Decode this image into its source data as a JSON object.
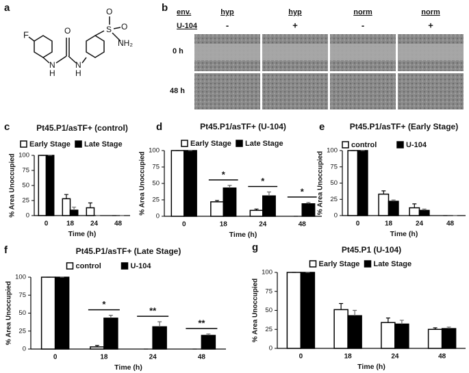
{
  "panel_labels": [
    "a",
    "b",
    "c",
    "d",
    "e",
    "f",
    "g"
  ],
  "structure": {
    "atoms": [
      "F",
      "N",
      "H",
      "O",
      "N",
      "H",
      "S",
      "O",
      "O",
      "NH₂"
    ]
  },
  "migration": {
    "env_label": "env.",
    "env": [
      "hyp",
      "hyp",
      "norm",
      "norm"
    ],
    "drug_label": "U-104",
    "drug": [
      "-",
      "+",
      "-",
      "+"
    ],
    "times": [
      "0 h",
      "48 h"
    ]
  },
  "chart_data": [
    {
      "type": "bar",
      "title": "Pt45.P1/asTF+ (control)",
      "xlabel": "Time (h)",
      "ylabel": "% Area Unoccupied",
      "categories": [
        "0",
        "18",
        "24",
        "48"
      ],
      "ylim": [
        0,
        100
      ],
      "yticks": [
        0,
        25,
        50,
        75,
        100
      ],
      "series": [
        {
          "name": "Early Stage",
          "color": "#ffffff",
          "values": [
            100,
            28,
            13,
            0
          ],
          "errors": [
            0,
            7,
            8,
            0
          ]
        },
        {
          "name": "Late Stage",
          "color": "#000000",
          "values": [
            100,
            9,
            0,
            0
          ],
          "errors": [
            0,
            5,
            0,
            0
          ]
        }
      ]
    },
    {
      "type": "bar",
      "title": "Pt45.P1/asTF+ (U-104)",
      "xlabel": "Time (h)",
      "ylabel": "% Area Unoccupied",
      "categories": [
        "0",
        "18",
        "24",
        "48"
      ],
      "ylim": [
        0,
        100
      ],
      "yticks": [
        0,
        25,
        50,
        75,
        100
      ],
      "series": [
        {
          "name": "Early Stage",
          "color": "#ffffff",
          "values": [
            100,
            22,
            9,
            0
          ],
          "errors": [
            0,
            2,
            2,
            0
          ]
        },
        {
          "name": "Late Stage",
          "color": "#000000",
          "values": [
            100,
            43,
            31,
            19
          ],
          "errors": [
            0,
            4,
            6,
            2
          ]
        }
      ],
      "annotations": [
        {
          "text": "*",
          "x": "18"
        },
        {
          "text": "*",
          "x": "24"
        },
        {
          "text": "*",
          "x": "48"
        }
      ]
    },
    {
      "type": "bar",
      "title": "Pt45.P1/asTF+ (Early Stage)",
      "xlabel": "Time (h)",
      "ylabel": "% Area Unoccupied",
      "categories": [
        "0",
        "18",
        "24",
        "48"
      ],
      "ylim": [
        0,
        100
      ],
      "yticks": [
        0,
        25,
        50,
        75,
        100
      ],
      "series": [
        {
          "name": "control",
          "color": "#ffffff",
          "values": [
            100,
            33,
            12,
            0
          ],
          "errors": [
            0,
            5,
            6,
            0
          ]
        },
        {
          "name": "U-104",
          "color": "#000000",
          "values": [
            100,
            22,
            8,
            0
          ],
          "errors": [
            0,
            2,
            2,
            0
          ]
        }
      ]
    },
    {
      "type": "bar",
      "title": "Pt45.P1/asTF+ (Late Stage)",
      "xlabel": "Time (h)",
      "ylabel": "% Area Unoccupied",
      "categories": [
        "0",
        "18",
        "24",
        "48"
      ],
      "ylim": [
        0,
        100
      ],
      "yticks": [
        0,
        25,
        50,
        75,
        100
      ],
      "series": [
        {
          "name": "control",
          "color": "#ffffff",
          "values": [
            100,
            3,
            0,
            0
          ],
          "errors": [
            0,
            2,
            0,
            0
          ]
        },
        {
          "name": "U-104",
          "color": "#000000",
          "values": [
            100,
            43,
            31,
            19
          ],
          "errors": [
            0,
            4,
            7,
            2
          ]
        }
      ],
      "annotations": [
        {
          "text": "*",
          "x": "18"
        },
        {
          "text": "**",
          "x": "24"
        },
        {
          "text": "**",
          "x": "48"
        }
      ]
    },
    {
      "type": "bar",
      "title": "Pt45.P1 (U-104)",
      "xlabel": "Time (h)",
      "ylabel": "% Area Unoccupied",
      "categories": [
        "0",
        "18",
        "24",
        "48"
      ],
      "ylim": [
        0,
        100
      ],
      "yticks": [
        0,
        25,
        50,
        75,
        100
      ],
      "series": [
        {
          "name": "Early Stage",
          "color": "#ffffff",
          "values": [
            100,
            51,
            34,
            25
          ],
          "errors": [
            0,
            8,
            6,
            2
          ]
        },
        {
          "name": "Late Stage",
          "color": "#000000",
          "values": [
            100,
            43,
            32,
            26
          ],
          "errors": [
            0,
            7,
            5,
            2
          ]
        }
      ]
    }
  ]
}
